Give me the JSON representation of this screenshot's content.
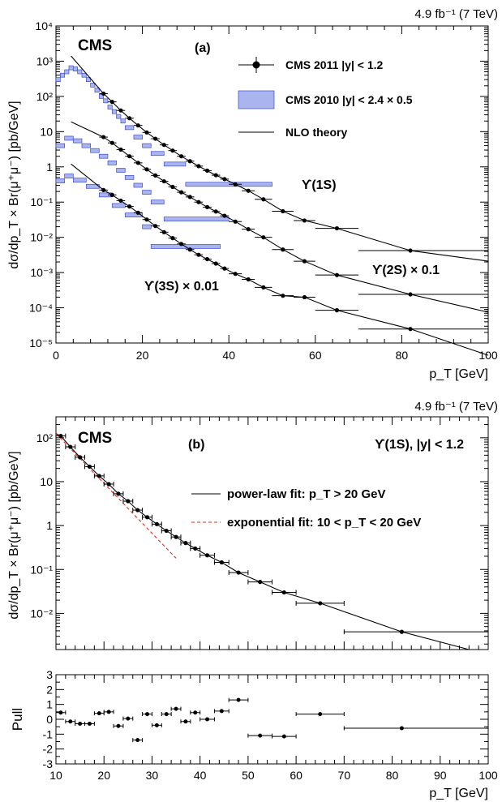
{
  "top": {
    "lumi": "4.9 fb⁻¹ (7 TeV)",
    "cms_label": "CMS",
    "panel_tag": "(a)",
    "ylabel": "dσ/dp_T × Br(μ⁺μ⁻) [pb/GeV]",
    "xlabel": "p_T [GeV]",
    "legend": [
      "CMS 2011 |y| < 1.2",
      "CMS 2010 |y| < 2.4 × 0.5",
      "NLO theory"
    ],
    "state_labels": [
      "ϒ(1S)",
      "ϒ(2S) × 0.1",
      "ϒ(3S) × 0.01"
    ],
    "xticks": [
      "0",
      "20",
      "40",
      "60",
      "80",
      "100"
    ],
    "yticks": [
      "10⁻⁵",
      "10⁻⁴",
      "10⁻³",
      "10⁻²",
      "10⁻¹",
      "1",
      "10",
      "10²",
      "10³",
      "10⁴"
    ]
  },
  "bottom": {
    "lumi": "4.9 fb⁻¹ (7 TeV)",
    "cms_label": "CMS",
    "panel_tag": "(b)",
    "title": "ϒ(1S), |y| < 1.2",
    "ylabel": "dσ/dp_T × Br(μ⁺μ⁻) [pb/GeV]",
    "legend": [
      "power-law fit: p_T > 20 GeV",
      "exponential fit: 10 < p_T < 20 GeV"
    ],
    "yticks": [
      "10⁻²",
      "10⁻¹",
      "1",
      "10",
      "10²"
    ]
  },
  "pull": {
    "ylabel": "Pull",
    "xlabel": "p_T [GeV]",
    "yticks": [
      "-3",
      "-2",
      "-1",
      "0",
      "1",
      "2",
      "3"
    ],
    "xticks": [
      "10",
      "20",
      "30",
      "40",
      "50",
      "60",
      "70",
      "80",
      "90",
      "100"
    ]
  },
  "chart_data": [
    {
      "type": "scatter",
      "title": "(a)",
      "xlabel": "p_T [GeV]",
      "ylabel": "dσ/dp_T × Br(μ⁺μ⁻) [pb/GeV]",
      "xlim": [
        0,
        100
      ],
      "ylim": [
        1e-05,
        10000.0
      ],
      "yscale": "log",
      "legend_position": "top-right",
      "series": [
        {
          "name": "ϒ(1S)",
          "xlo": [
            10,
            12,
            14,
            16,
            18,
            20,
            22,
            24,
            26,
            28,
            30,
            32,
            34,
            36,
            38,
            40,
            43,
            46,
            50,
            55,
            60,
            70
          ],
          "xhi": [
            12,
            14,
            16,
            18,
            20,
            22,
            24,
            26,
            28,
            30,
            32,
            34,
            36,
            38,
            40,
            43,
            46,
            50,
            55,
            60,
            70,
            100
          ],
          "x": [
            11,
            13,
            15,
            17,
            19,
            21,
            23,
            25,
            27,
            29,
            31,
            33,
            35,
            37,
            39,
            41.5,
            44.5,
            48,
            52.5,
            57.5,
            65,
            82
          ],
          "y": [
            120,
            70,
            40,
            24,
            15,
            9.5,
            6.3,
            4.2,
            2.9,
            2.0,
            1.45,
            1.05,
            0.78,
            0.58,
            0.45,
            0.32,
            0.21,
            0.12,
            0.055,
            0.03,
            0.018,
            0.0042
          ]
        },
        {
          "name": "ϒ(2S) × 0.1",
          "xlo": [
            10,
            12,
            14,
            16,
            18,
            20,
            22,
            24,
            26,
            28,
            30,
            32,
            34,
            36,
            38,
            40,
            43,
            46,
            50,
            55,
            60,
            70
          ],
          "xhi": [
            12,
            14,
            16,
            18,
            20,
            22,
            24,
            26,
            28,
            30,
            32,
            34,
            36,
            38,
            40,
            43,
            46,
            50,
            55,
            60,
            70,
            100
          ],
          "x": [
            11,
            13,
            15,
            17,
            19,
            21,
            23,
            25,
            27,
            29,
            31,
            33,
            35,
            37,
            39,
            41.5,
            44.5,
            48,
            52.5,
            57.5,
            65,
            82
          ],
          "y": [
            7,
            4.8,
            3.1,
            2.0,
            1.3,
            0.85,
            0.57,
            0.39,
            0.27,
            0.19,
            0.14,
            0.1,
            0.072,
            0.054,
            0.041,
            0.028,
            0.017,
            0.01,
            0.0045,
            0.0021,
            0.00085,
            0.00024
          ]
        },
        {
          "name": "ϒ(3S) × 0.01",
          "xlo": [
            10,
            12,
            14,
            16,
            18,
            20,
            22,
            24,
            26,
            28,
            30,
            32,
            34,
            36,
            38,
            40,
            43,
            46,
            50,
            55,
            60,
            70
          ],
          "xhi": [
            12,
            14,
            16,
            18,
            20,
            22,
            24,
            26,
            28,
            30,
            32,
            34,
            36,
            38,
            40,
            43,
            46,
            50,
            55,
            60,
            70,
            100
          ],
          "x": [
            11,
            13,
            15,
            17,
            19,
            21,
            23,
            25,
            27,
            29,
            31,
            33,
            35,
            37,
            39,
            41.5,
            44.5,
            48,
            52.5,
            57.5,
            65,
            82
          ],
          "y": [
            0.22,
            0.16,
            0.11,
            0.075,
            0.05,
            0.032,
            0.021,
            0.014,
            0.0095,
            0.0065,
            0.0045,
            0.0032,
            0.0024,
            0.0018,
            0.0013,
            0.00092,
            0.00064,
            0.00038,
            0.00022,
            0.0002,
            8.5e-05,
            2.5e-05
          ]
        }
      ],
      "series_2010": [
        {
          "name": "ϒ(1S) 2010",
          "xlo": [
            0,
            1,
            2,
            3,
            4,
            5,
            6,
            7,
            8,
            9,
            10,
            11,
            12,
            13,
            14,
            15,
            16,
            18,
            20,
            22,
            25,
            30
          ],
          "xhi": [
            1,
            2,
            3,
            4,
            5,
            6,
            7,
            8,
            9,
            10,
            11,
            12,
            13,
            14,
            15,
            16,
            18,
            20,
            22,
            25,
            30,
            50
          ],
          "y": [
            300,
            400,
            500,
            650,
            600,
            500,
            400,
            300,
            210,
            150,
            100,
            75,
            50,
            37,
            27,
            20,
            13,
            7,
            4,
            2.4,
            1.2,
            0.32
          ]
        },
        {
          "name": "ϒ(2S) 2010",
          "xlo": [
            0,
            2,
            4,
            6,
            8,
            10,
            12,
            14,
            16,
            18,
            20,
            22,
            25
          ],
          "xhi": [
            2,
            4,
            6,
            8,
            10,
            12,
            14,
            16,
            18,
            20,
            22,
            25,
            40
          ],
          "y": [
            4,
            6.5,
            5.5,
            4,
            2.9,
            2.0,
            1.3,
            0.8,
            0.5,
            0.3,
            0.19,
            0.1,
            0.033
          ]
        },
        {
          "name": "ϒ(3S) 2010",
          "xlo": [
            0,
            2,
            4,
            7,
            10,
            13,
            16,
            20,
            22
          ],
          "xhi": [
            2,
            4,
            7,
            10,
            13,
            16,
            20,
            22,
            38
          ],
          "y": [
            0.4,
            0.55,
            0.42,
            0.28,
            0.16,
            0.08,
            0.043,
            0.02,
            0.0055
          ]
        }
      ]
    },
    {
      "type": "scatter",
      "title": "(b) ϒ(1S), |y| < 1.2",
      "xlim": [
        10,
        100
      ],
      "ylim": [
        0.0015,
        300
      ],
      "yscale": "log",
      "legend_position": "top-right",
      "xlo": [
        10,
        12,
        14,
        16,
        18,
        20,
        22,
        24,
        26,
        28,
        30,
        32,
        34,
        36,
        38,
        40,
        43,
        46,
        50,
        55,
        60,
        70
      ],
      "xhi": [
        12,
        14,
        16,
        18,
        20,
        22,
        24,
        26,
        28,
        30,
        32,
        34,
        36,
        38,
        40,
        43,
        46,
        50,
        55,
        60,
        70,
        100
      ],
      "x": [
        11,
        13,
        15,
        17,
        19,
        21,
        23,
        25,
        27,
        29,
        31,
        33,
        35,
        37,
        39,
        41.5,
        44.5,
        48,
        52.5,
        57.5,
        65,
        82
      ],
      "y": [
        110,
        62,
        36,
        22,
        13.5,
        8.8,
        5.3,
        3.6,
        2.25,
        1.55,
        1.08,
        0.76,
        0.55,
        0.4,
        0.3,
        0.21,
        0.145,
        0.085,
        0.052,
        0.03,
        0.017,
        0.0038
      ]
    },
    {
      "type": "scatter",
      "title": "Pull",
      "xlabel": "p_T [GeV]",
      "xlim": [
        10,
        100
      ],
      "ylim": [
        -3,
        3
      ],
      "xlo": [
        10,
        12,
        14,
        16,
        18,
        20,
        22,
        24,
        26,
        28,
        30,
        32,
        34,
        36,
        38,
        40,
        43,
        46,
        50,
        55,
        60,
        70
      ],
      "xhi": [
        12,
        14,
        16,
        18,
        20,
        22,
        24,
        26,
        28,
        30,
        32,
        34,
        36,
        38,
        40,
        43,
        46,
        50,
        55,
        60,
        70,
        100
      ],
      "x": [
        11,
        13,
        15,
        17,
        19,
        21,
        23,
        25,
        27,
        29,
        31,
        33,
        35,
        37,
        39,
        41.5,
        44.5,
        48,
        52.5,
        57.5,
        65,
        82
      ],
      "y": [
        0.45,
        -0.15,
        -0.3,
        -0.3,
        0.4,
        0.5,
        -0.45,
        0.05,
        -1.4,
        0.35,
        -0.4,
        0.35,
        0.7,
        -0.15,
        0.45,
        0.0,
        0.55,
        1.3,
        -1.1,
        -1.15,
        0.35,
        -0.6
      ]
    }
  ]
}
